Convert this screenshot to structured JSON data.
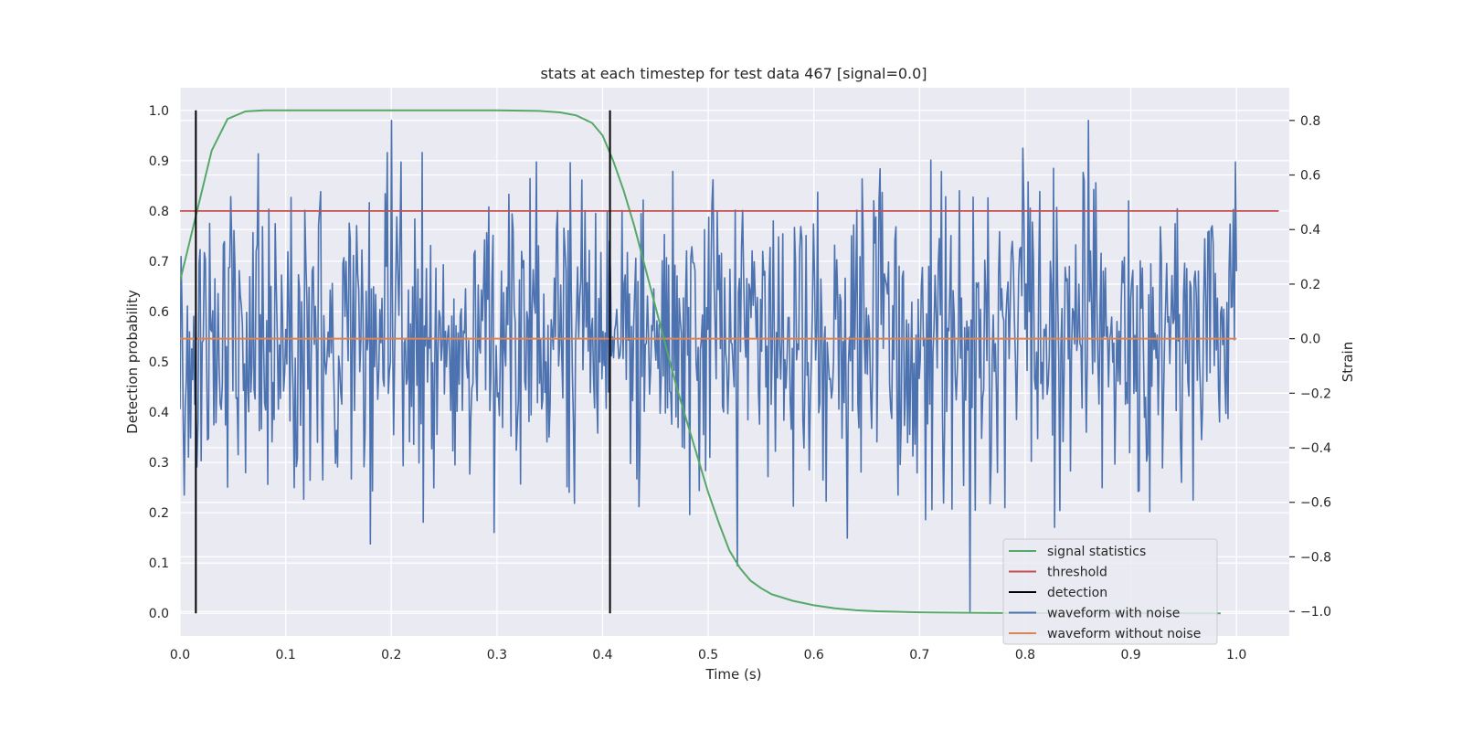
{
  "chart_data": {
    "type": "line",
    "title": "stats at each timestep for test data 467 [signal=0.0]",
    "xlabel": "Time (s)",
    "ylabel_left": "Detection probability",
    "ylabel_right": "Strain",
    "xlim": [
      0.0,
      1.05
    ],
    "ylim_left": [
      -0.045,
      1.045
    ],
    "ylim_right": [
      -1.09,
      0.92
    ],
    "x_ticks": [
      "0.0",
      "0.1",
      "0.2",
      "0.3",
      "0.4",
      "0.5",
      "0.6",
      "0.7",
      "0.8",
      "0.9",
      "1.0"
    ],
    "x_tick_values": [
      0.0,
      0.1,
      0.2,
      0.3,
      0.4,
      0.5,
      0.6,
      0.7,
      0.8,
      0.9,
      1.0
    ],
    "y_ticks_left": [
      "0.0",
      "0.1",
      "0.2",
      "0.3",
      "0.4",
      "0.5",
      "0.6",
      "0.7",
      "0.8",
      "0.9",
      "1.0"
    ],
    "y_tick_values_left": [
      0.0,
      0.1,
      0.2,
      0.3,
      0.4,
      0.5,
      0.6,
      0.7,
      0.8,
      0.9,
      1.0
    ],
    "y_ticks_right": [
      "0.8",
      "0.6",
      "0.4",
      "0.2",
      "0.0",
      "−0.2",
      "−0.4",
      "−0.6",
      "−0.8",
      "−1.0"
    ],
    "y_tick_values_right": [
      0.8,
      0.6,
      0.4,
      0.2,
      0.0,
      -0.2,
      -0.4,
      -0.6,
      -0.8,
      -1.0
    ],
    "grid": true,
    "legend_position": "bottom-right",
    "series": [
      {
        "name": "signal statistics",
        "axis": "left",
        "color": "#55a868",
        "x": [
          0.0,
          0.015,
          0.03,
          0.045,
          0.062,
          0.08,
          0.1,
          0.15,
          0.2,
          0.25,
          0.3,
          0.34,
          0.36,
          0.375,
          0.39,
          0.4,
          0.41,
          0.42,
          0.43,
          0.44,
          0.45,
          0.46,
          0.47,
          0.48,
          0.49,
          0.5,
          0.51,
          0.52,
          0.53,
          0.54,
          0.55,
          0.56,
          0.58,
          0.6,
          0.62,
          0.64,
          0.66,
          0.7,
          0.75,
          0.8,
          0.85,
          0.9,
          0.95,
          0.985
        ],
        "y": [
          0.66,
          0.79,
          0.92,
          0.983,
          0.998,
          1.0,
          1.0,
          1.0,
          1.0,
          1.0,
          1.0,
          0.999,
          0.996,
          0.99,
          0.975,
          0.95,
          0.9,
          0.84,
          0.77,
          0.69,
          0.61,
          0.53,
          0.45,
          0.38,
          0.31,
          0.24,
          0.18,
          0.125,
          0.09,
          0.065,
          0.05,
          0.038,
          0.025,
          0.016,
          0.01,
          0.006,
          0.004,
          0.002,
          0.001,
          0.0005,
          0.0003,
          0.0002,
          0.0001,
          0.0
        ]
      },
      {
        "name": "threshold",
        "axis": "left",
        "color": "#c44e52",
        "x": [
          0.0,
          1.04
        ],
        "y": [
          0.8,
          0.8
        ]
      },
      {
        "name": "detection",
        "axis": "left",
        "color": "#000000",
        "segments": [
          {
            "x": 0.015,
            "y": [
              0.0,
              1.0
            ]
          },
          {
            "x": 0.407,
            "y": [
              0.0,
              1.0
            ]
          }
        ]
      },
      {
        "name": "waveform with noise",
        "axis": "right",
        "color": "#4c72b0",
        "x_range": [
          0.0,
          1.0
        ],
        "n_points": 1000,
        "std": 0.3,
        "min": -1.0,
        "max": 0.8,
        "seed": 467
      },
      {
        "name": "waveform without noise",
        "axis": "right",
        "color": "#dd8452",
        "x": [
          0.0,
          1.0
        ],
        "y": [
          0.0,
          0.0
        ]
      }
    ]
  }
}
